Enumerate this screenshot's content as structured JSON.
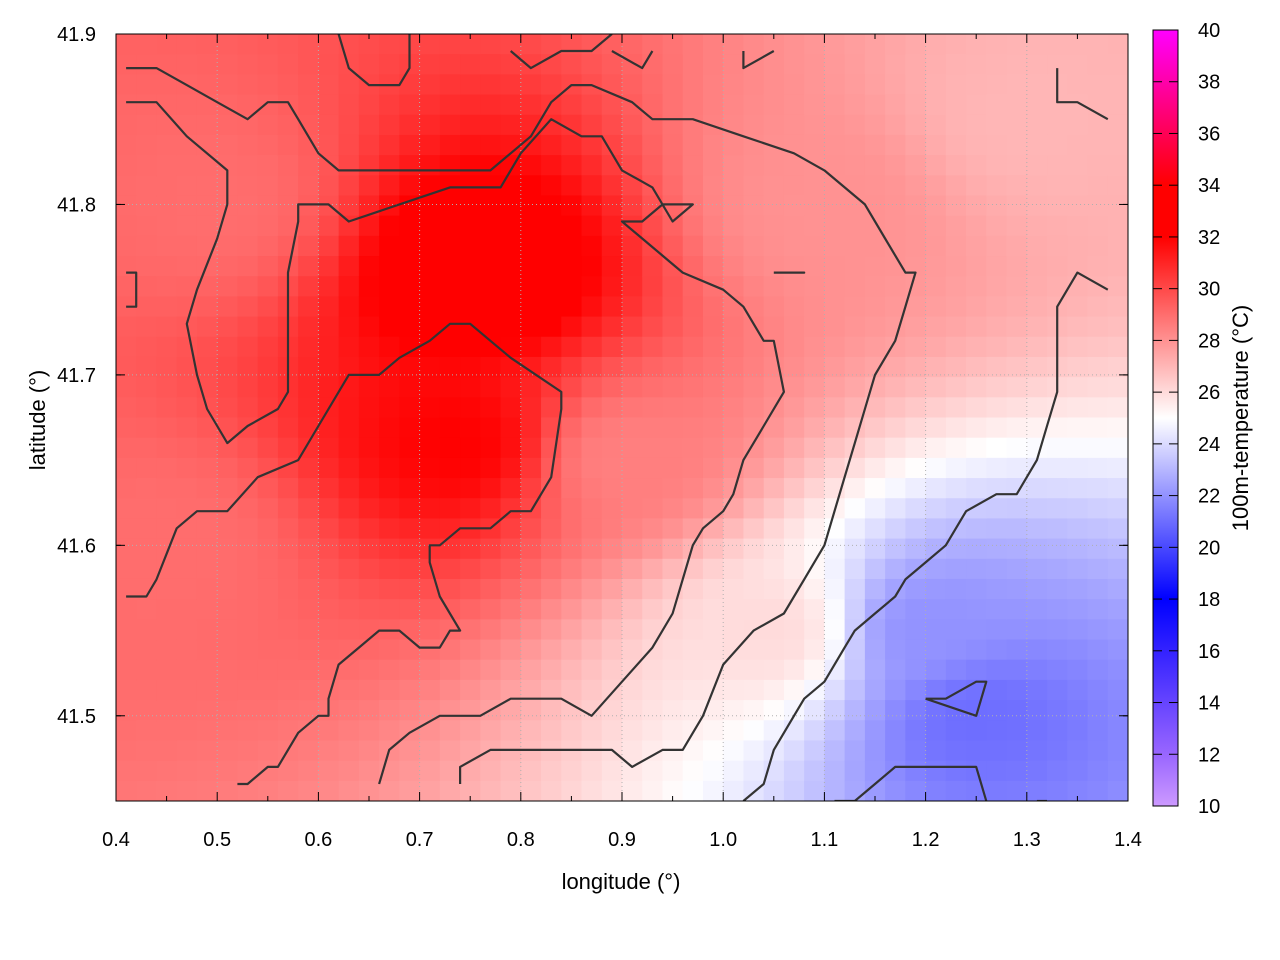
{
  "chart_data": {
    "type": "heatmap",
    "title": "",
    "xlabel": "longitude (°)",
    "ylabel": "latitude (°)",
    "colorbar_label": "100m-temperature (°C)",
    "xlim": [
      0.4,
      1.4
    ],
    "ylim": [
      41.45,
      41.9
    ],
    "x_ticks": [
      "0.4",
      "0.5",
      "0.6",
      "0.7",
      "0.8",
      "0.9",
      "1.0",
      "1.1",
      "1.2",
      "1.3",
      "1.4"
    ],
    "y_ticks": [
      "41.5",
      "41.6",
      "41.7",
      "41.8",
      "41.9"
    ],
    "colorbar_ticks": [
      "10",
      "12",
      "14",
      "16",
      "18",
      "20",
      "22",
      "24",
      "26",
      "28",
      "30",
      "32",
      "34",
      "36",
      "38",
      "40"
    ],
    "colorbar_range": [
      10,
      40
    ],
    "grid": true,
    "colormap_stops": [
      {
        "t": 10,
        "color": "#cc99ff"
      },
      {
        "t": 12,
        "color": "#9966ff"
      },
      {
        "t": 18,
        "color": "#0000ff"
      },
      {
        "t": 25,
        "color": "#ffffff"
      },
      {
        "t": 32,
        "color": "#ff0000"
      },
      {
        "t": 34,
        "color": "#ff0000"
      },
      {
        "t": 40,
        "color": "#ff00ff"
      }
    ],
    "field_samples": [
      {
        "lon": 0.76,
        "lat": 41.76,
        "value": 33
      },
      {
        "lon": 0.74,
        "lat": 41.66,
        "value": 32
      },
      {
        "lon": 0.5,
        "lat": 41.8,
        "value": 29
      },
      {
        "lon": 0.45,
        "lat": 41.6,
        "value": 29
      },
      {
        "lon": 0.9,
        "lat": 41.65,
        "value": 28.5
      },
      {
        "lon": 1.1,
        "lat": 41.8,
        "value": 28
      },
      {
        "lon": 1.3,
        "lat": 41.85,
        "value": 27
      },
      {
        "lon": 1.05,
        "lat": 41.55,
        "value": 26
      },
      {
        "lon": 1.2,
        "lat": 41.55,
        "value": 22
      },
      {
        "lon": 1.25,
        "lat": 41.5,
        "value": 21
      }
    ],
    "contours": [
      [
        [
          0.41,
          41.86
        ],
        [
          0.44,
          41.86
        ],
        [
          0.47,
          41.84
        ],
        [
          0.51,
          41.82
        ],
        [
          0.51,
          41.8
        ],
        [
          0.5,
          41.78
        ],
        [
          0.48,
          41.75
        ],
        [
          0.47,
          41.73
        ],
        [
          0.48,
          41.7
        ],
        [
          0.49,
          41.68
        ],
        [
          0.5,
          41.67
        ],
        [
          0.51,
          41.66
        ],
        [
          0.53,
          41.67
        ],
        [
          0.56,
          41.68
        ],
        [
          0.57,
          41.69
        ],
        [
          0.57,
          41.73
        ],
        [
          0.57,
          41.76
        ],
        [
          0.58,
          41.79
        ],
        [
          0.58,
          41.8
        ],
        [
          0.61,
          41.8
        ],
        [
          0.63,
          41.79
        ],
        [
          0.68,
          41.8
        ],
        [
          0.73,
          41.81
        ],
        [
          0.78,
          41.81
        ],
        [
          0.8,
          41.83
        ],
        [
          0.83,
          41.85
        ],
        [
          0.86,
          41.84
        ],
        [
          0.88,
          41.84
        ],
        [
          0.9,
          41.82
        ],
        [
          0.93,
          41.81
        ],
        [
          0.95,
          41.79
        ],
        [
          0.97,
          41.8
        ],
        [
          0.94,
          41.8
        ],
        [
          0.92,
          41.79
        ],
        [
          0.9,
          41.79
        ],
        [
          0.92,
          41.78
        ],
        [
          0.94,
          41.77
        ],
        [
          0.96,
          41.76
        ],
        [
          1.0,
          41.75
        ],
        [
          1.02,
          41.74
        ],
        [
          1.04,
          41.72
        ],
        [
          1.05,
          41.72
        ],
        [
          1.06,
          41.69
        ],
        [
          1.04,
          41.67
        ],
        [
          1.02,
          41.65
        ],
        [
          1.01,
          41.63
        ],
        [
          1.0,
          41.62
        ],
        [
          0.98,
          41.61
        ],
        [
          0.97,
          41.6
        ],
        [
          0.96,
          41.58
        ],
        [
          0.95,
          41.56
        ],
        [
          0.93,
          41.54
        ],
        [
          0.9,
          41.52
        ],
        [
          0.87,
          41.5
        ],
        [
          0.84,
          41.51
        ],
        [
          0.79,
          41.51
        ],
        [
          0.76,
          41.5
        ],
        [
          0.72,
          41.5
        ],
        [
          0.69,
          41.49
        ],
        [
          0.67,
          41.48
        ],
        [
          0.66,
          41.46
        ]
      ],
      [
        [
          0.41,
          41.57
        ],
        [
          0.43,
          41.57
        ],
        [
          0.44,
          41.58
        ],
        [
          0.46,
          41.61
        ],
        [
          0.48,
          41.62
        ],
        [
          0.51,
          41.62
        ],
        [
          0.54,
          41.64
        ],
        [
          0.58,
          41.65
        ],
        [
          0.6,
          41.67
        ],
        [
          0.63,
          41.7
        ],
        [
          0.66,
          41.7
        ],
        [
          0.68,
          41.71
        ],
        [
          0.71,
          41.72
        ],
        [
          0.73,
          41.73
        ],
        [
          0.75,
          41.73
        ],
        [
          0.77,
          41.72
        ],
        [
          0.79,
          41.71
        ],
        [
          0.84,
          41.69
        ],
        [
          0.84,
          41.68
        ],
        [
          0.83,
          41.64
        ],
        [
          0.81,
          41.62
        ],
        [
          0.79,
          41.62
        ],
        [
          0.77,
          41.61
        ],
        [
          0.74,
          41.61
        ],
        [
          0.72,
          41.6
        ],
        [
          0.71,
          41.6
        ],
        [
          0.71,
          41.59
        ],
        [
          0.72,
          41.57
        ],
        [
          0.74,
          41.55
        ],
        [
          0.73,
          41.55
        ],
        [
          0.72,
          41.54
        ],
        [
          0.7,
          41.54
        ],
        [
          0.68,
          41.55
        ],
        [
          0.66,
          41.55
        ],
        [
          0.64,
          41.54
        ],
        [
          0.62,
          41.53
        ],
        [
          0.61,
          41.51
        ],
        [
          0.61,
          41.5
        ],
        [
          0.6,
          41.5
        ],
        [
          0.58,
          41.49
        ],
        [
          0.56,
          41.47
        ],
        [
          0.55,
          41.47
        ],
        [
          0.53,
          41.46
        ],
        [
          0.52,
          41.46
        ]
      ],
      [
        [
          0.74,
          41.46
        ],
        [
          0.74,
          41.47
        ],
        [
          0.77,
          41.48
        ],
        [
          0.8,
          41.48
        ],
        [
          0.84,
          41.48
        ],
        [
          0.89,
          41.48
        ],
        [
          0.91,
          41.47
        ],
        [
          0.94,
          41.48
        ],
        [
          0.96,
          41.48
        ],
        [
          0.98,
          41.5
        ],
        [
          1.0,
          41.53
        ],
        [
          1.03,
          41.55
        ],
        [
          1.06,
          41.56
        ],
        [
          1.08,
          41.58
        ],
        [
          1.1,
          41.6
        ],
        [
          1.11,
          41.62
        ],
        [
          1.12,
          41.64
        ],
        [
          1.13,
          41.66
        ],
        [
          1.14,
          41.68
        ],
        [
          1.15,
          41.7
        ],
        [
          1.17,
          41.72
        ],
        [
          1.18,
          41.74
        ],
        [
          1.19,
          41.76
        ],
        [
          1.18,
          41.76
        ],
        [
          1.16,
          41.78
        ],
        [
          1.14,
          41.8
        ],
        [
          1.1,
          41.82
        ],
        [
          1.07,
          41.83
        ],
        [
          1.02,
          41.84
        ],
        [
          0.97,
          41.85
        ],
        [
          0.93,
          41.85
        ],
        [
          0.91,
          41.86
        ],
        [
          0.87,
          41.87
        ],
        [
          0.85,
          41.87
        ],
        [
          0.83,
          41.86
        ],
        [
          0.81,
          41.84
        ],
        [
          0.79,
          41.83
        ],
        [
          0.77,
          41.82
        ],
        [
          0.74,
          41.82
        ],
        [
          0.71,
          41.82
        ],
        [
          0.68,
          41.82
        ],
        [
          0.66,
          41.82
        ],
        [
          0.62,
          41.82
        ],
        [
          0.6,
          41.83
        ],
        [
          0.58,
          41.85
        ],
        [
          0.57,
          41.86
        ],
        [
          0.55,
          41.86
        ],
        [
          0.53,
          41.85
        ],
        [
          0.5,
          41.86
        ],
        [
          0.47,
          41.87
        ],
        [
          0.44,
          41.88
        ],
        [
          0.41,
          41.88
        ]
      ],
      [
        [
          1.02,
          41.45
        ],
        [
          1.04,
          41.46
        ],
        [
          1.05,
          41.48
        ],
        [
          1.07,
          41.5
        ],
        [
          1.08,
          41.51
        ],
        [
          1.1,
          41.52
        ],
        [
          1.12,
          41.54
        ],
        [
          1.13,
          41.55
        ],
        [
          1.15,
          41.56
        ],
        [
          1.17,
          41.57
        ],
        [
          1.18,
          41.58
        ],
        [
          1.2,
          41.59
        ],
        [
          1.22,
          41.6
        ],
        [
          1.24,
          41.62
        ],
        [
          1.27,
          41.63
        ],
        [
          1.29,
          41.63
        ],
        [
          1.31,
          41.65
        ],
        [
          1.32,
          41.67
        ],
        [
          1.33,
          41.69
        ],
        [
          1.33,
          41.71
        ],
        [
          1.33,
          41.73
        ],
        [
          1.33,
          41.74
        ],
        [
          1.35,
          41.76
        ],
        [
          1.38,
          41.75
        ]
      ],
      [
        [
          1.11,
          41.45
        ],
        [
          1.13,
          41.45
        ],
        [
          1.15,
          41.46
        ],
        [
          1.17,
          41.47
        ],
        [
          1.22,
          41.47
        ],
        [
          1.25,
          41.47
        ],
        [
          1.26,
          41.45
        ]
      ],
      [
        [
          1.2,
          41.51
        ],
        [
          1.22,
          41.51
        ],
        [
          1.25,
          41.52
        ],
        [
          1.26,
          41.52
        ],
        [
          1.25,
          41.5
        ],
        [
          1.2,
          41.51
        ]
      ],
      [
        [
          1.05,
          41.76
        ],
        [
          1.06,
          41.76
        ],
        [
          1.08,
          41.76
        ],
        [
          1.06,
          41.76
        ],
        [
          1.05,
          41.76
        ]
      ],
      [
        [
          0.41,
          41.76
        ],
        [
          0.42,
          41.76
        ],
        [
          0.42,
          41.74
        ],
        [
          0.41,
          41.74
        ]
      ],
      [
        [
          0.62,
          41.9
        ],
        [
          0.63,
          41.88
        ],
        [
          0.65,
          41.87
        ],
        [
          0.68,
          41.87
        ],
        [
          0.69,
          41.88
        ],
        [
          0.69,
          41.9
        ]
      ],
      [
        [
          0.79,
          41.89
        ],
        [
          0.81,
          41.88
        ],
        [
          0.84,
          41.89
        ],
        [
          0.87,
          41.89
        ],
        [
          0.89,
          41.9
        ]
      ],
      [
        [
          0.93,
          41.89
        ],
        [
          0.92,
          41.88
        ],
        [
          0.89,
          41.89
        ]
      ],
      [
        [
          1.02,
          41.89
        ],
        [
          1.02,
          41.88
        ],
        [
          1.05,
          41.89
        ]
      ],
      [
        [
          1.33,
          41.88
        ],
        [
          1.33,
          41.86
        ],
        [
          1.35,
          41.86
        ],
        [
          1.38,
          41.85
        ]
      ],
      [
        [
          1.31,
          41.45
        ],
        [
          1.32,
          41.45
        ]
      ]
    ]
  }
}
